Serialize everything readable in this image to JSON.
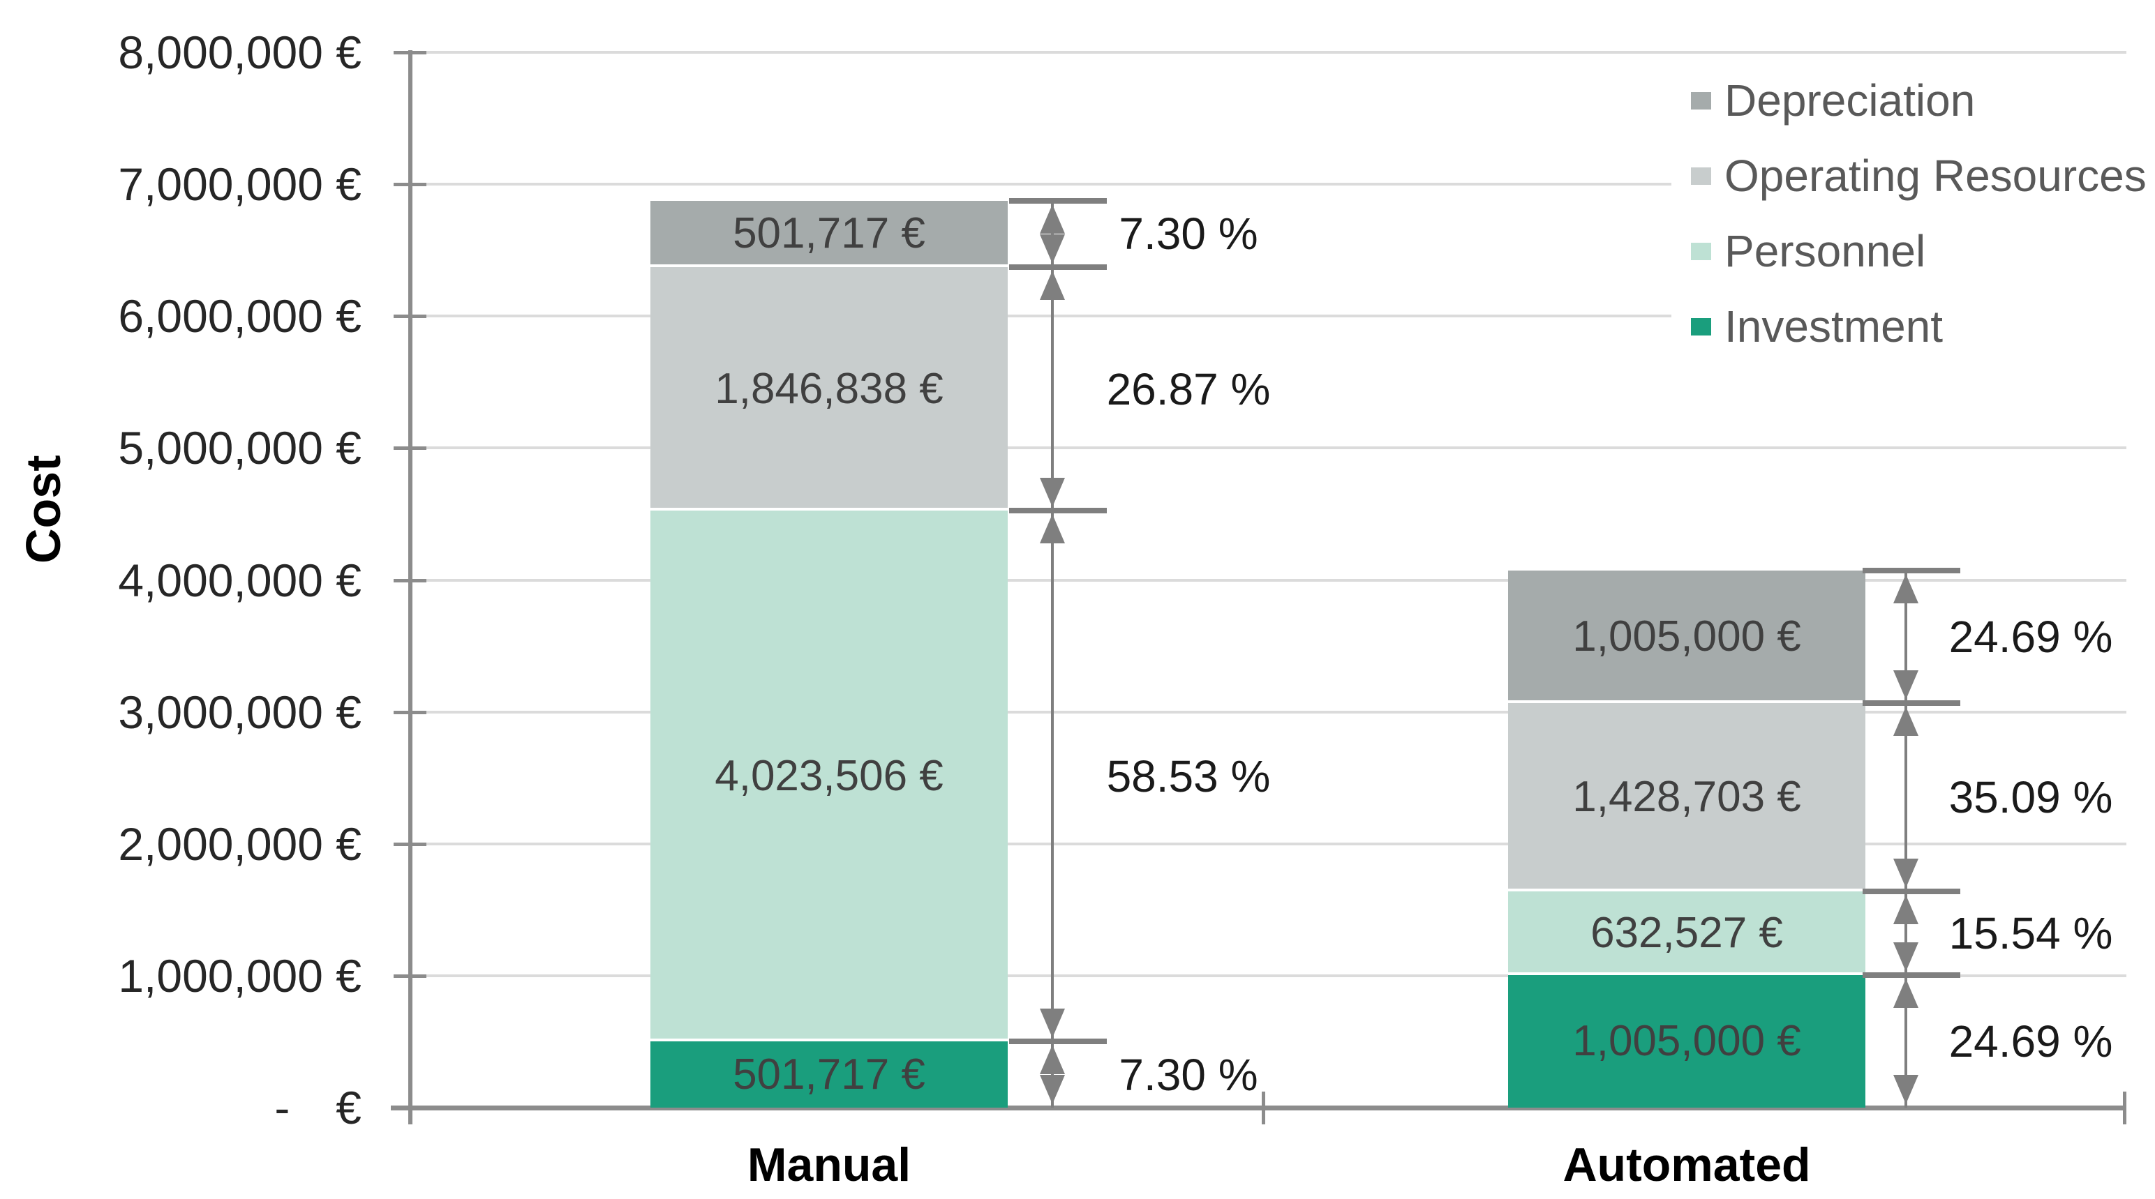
{
  "chart_data": {
    "type": "bar",
    "stacked": true,
    "title": "",
    "xlabel": "",
    "ylabel": "Cost",
    "ylim": [
      0,
      8000000
    ],
    "ytick_interval": 1000000,
    "ytick_labels": [
      "8,000,000 €",
      "7,000,000 €",
      "6,000,000 €",
      "5,000,000 €",
      "4,000,000 €",
      "3,000,000 €",
      "2,000,000 €",
      "1,000,000 €",
      "-  €"
    ],
    "grid": "horizontal",
    "legend_position": "top-right",
    "categories": [
      "Manual",
      "Automated"
    ],
    "series": [
      {
        "name": "Investment",
        "color": "#1A9E7D",
        "values": [
          501717,
          1005000
        ],
        "value_labels": [
          "501,717 €",
          "1,005,000 €"
        ],
        "pct_labels": [
          "7.30 %",
          "24.69 %"
        ]
      },
      {
        "name": "Personnel",
        "color": "#BEE1D4",
        "values": [
          4023506,
          632527
        ],
        "value_labels": [
          "4,023,506 €",
          "632,527 €"
        ],
        "pct_labels": [
          "58.53 %",
          "15.54 %"
        ]
      },
      {
        "name": "Operating Resources",
        "color": "#C8CDCD",
        "values": [
          1846838,
          1428703
        ],
        "value_labels": [
          "1,846,838 €",
          "1,428,703 €"
        ],
        "pct_labels": [
          "26.87 %",
          "35.09 %"
        ]
      },
      {
        "name": "Depreciation",
        "color": "#A5ABAB",
        "values": [
          501717,
          1005000
        ],
        "value_labels": [
          "501,717 €",
          "1,005,000 €"
        ],
        "pct_labels": [
          "7.30 %",
          "24.69 %"
        ]
      }
    ],
    "legend": [
      {
        "label": "Depreciation",
        "color": "#A5ABAB"
      },
      {
        "label": "Operating Resources",
        "color": "#C8CDCD"
      },
      {
        "label": "Personnel",
        "color": "#BEE1D4"
      },
      {
        "label": "Investment",
        "color": "#1A9E7D"
      }
    ]
  }
}
